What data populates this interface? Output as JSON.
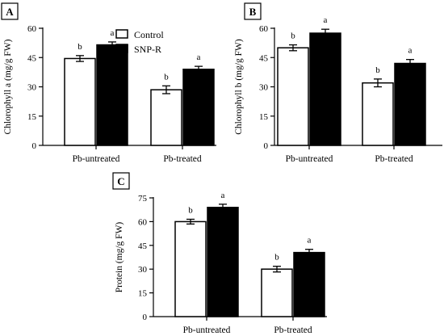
{
  "legend": {
    "items": [
      {
        "label": "Control",
        "fill": "#ffffff"
      },
      {
        "label": "SNP-R",
        "fill": "#000000"
      }
    ]
  },
  "chart_data": [
    {
      "panel": "A",
      "type": "bar",
      "ylabel": "Chlorophyll a (mg/g FW)",
      "ylim": [
        0,
        60
      ],
      "yticks": [
        0,
        15,
        30,
        45,
        60
      ],
      "categories": [
        "Pb-untreated",
        "Pb-treated"
      ],
      "series": [
        {
          "name": "Control",
          "values": [
            44.5,
            28.5
          ],
          "errors": [
            1.5,
            2.0
          ],
          "letters": [
            "b",
            "b"
          ],
          "color": "#ffffff"
        },
        {
          "name": "SNP-R",
          "values": [
            51.5,
            39.0
          ],
          "errors": [
            1.5,
            1.5
          ],
          "letters": [
            "a",
            "a"
          ],
          "color": "#000000"
        }
      ]
    },
    {
      "panel": "B",
      "type": "bar",
      "ylabel": "Chlorophyll b (mg/g FW)",
      "ylim": [
        0,
        60
      ],
      "yticks": [
        0,
        15,
        30,
        45,
        60
      ],
      "categories": [
        "Pb-untreated",
        "Pb-treated"
      ],
      "series": [
        {
          "name": "Control",
          "values": [
            50.0,
            32.0
          ],
          "errors": [
            1.5,
            2.0
          ],
          "letters": [
            "b",
            "b"
          ],
          "color": "#ffffff"
        },
        {
          "name": "SNP-R",
          "values": [
            57.5,
            42.0
          ],
          "errors": [
            2.0,
            2.0
          ],
          "letters": [
            "a",
            "a"
          ],
          "color": "#000000"
        }
      ]
    },
    {
      "panel": "C",
      "type": "bar",
      "ylabel": "Protein (mg/g FW)",
      "ylim": [
        0,
        75
      ],
      "yticks": [
        0,
        15,
        30,
        45,
        60,
        75
      ],
      "categories": [
        "Pb-untreated",
        "Pb-treated"
      ],
      "series": [
        {
          "name": "Control",
          "values": [
            60.0,
            30.0
          ],
          "errors": [
            1.5,
            1.8
          ],
          "letters": [
            "b",
            "b"
          ],
          "color": "#ffffff"
        },
        {
          "name": "SNP-R",
          "values": [
            69.0,
            40.5
          ],
          "errors": [
            2.0,
            2.0
          ],
          "letters": [
            "a",
            "a"
          ],
          "color": "#000000"
        }
      ]
    }
  ]
}
